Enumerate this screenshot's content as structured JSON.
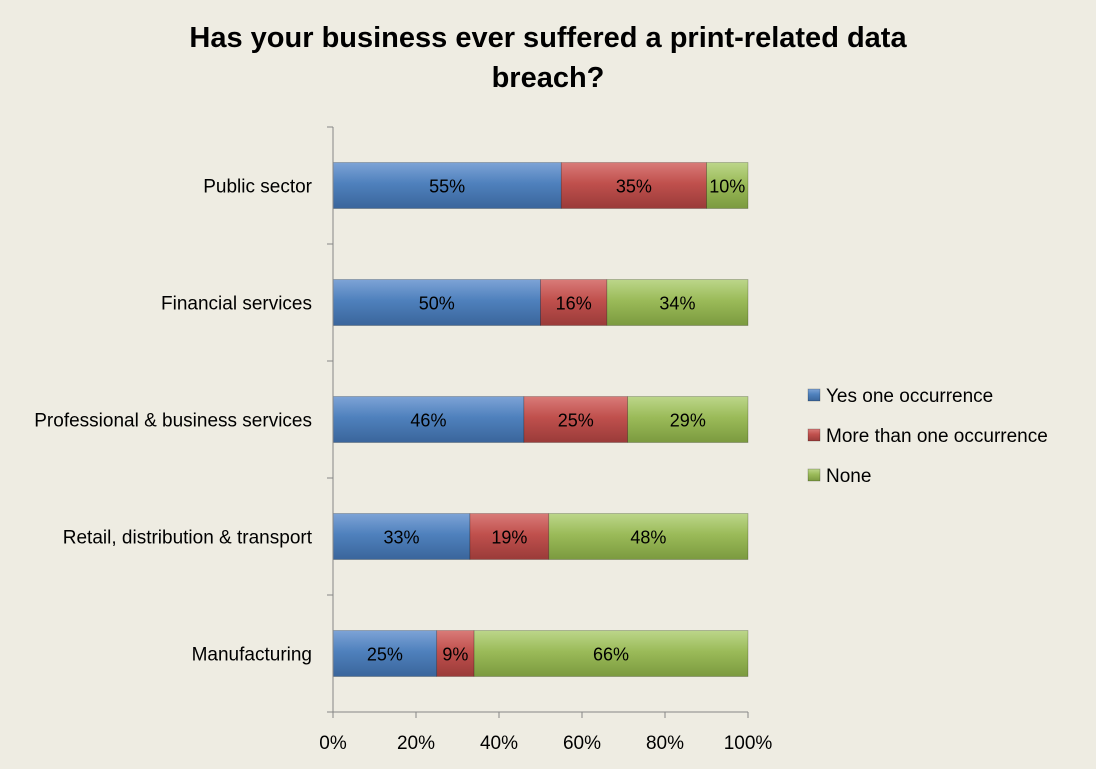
{
  "chart_data": {
    "type": "bar",
    "orientation": "horizontal",
    "stacked": true,
    "title_lines": [
      "Has your business ever suffered a print-related data",
      "breach?"
    ],
    "categories": [
      "Public sector",
      "Financial services",
      "Professional & business services",
      "Retail, distribution & transport",
      "Manufacturing"
    ],
    "series": [
      {
        "name": "Yes one occurrence",
        "color": "#4f81bd",
        "values": [
          55,
          50,
          46,
          33,
          25
        ]
      },
      {
        "name": "More than one occurrence",
        "color": "#c0504d",
        "values": [
          35,
          16,
          25,
          19,
          9
        ]
      },
      {
        "name": "None",
        "color": "#9bbb59",
        "values": [
          10,
          34,
          29,
          48,
          66
        ]
      }
    ],
    "xlim": [
      0,
      100
    ],
    "x_ticks": [
      "0%",
      "20%",
      "40%",
      "60%",
      "80%",
      "100%"
    ],
    "legend_position": "right",
    "grid": false,
    "value_suffix": "%"
  }
}
